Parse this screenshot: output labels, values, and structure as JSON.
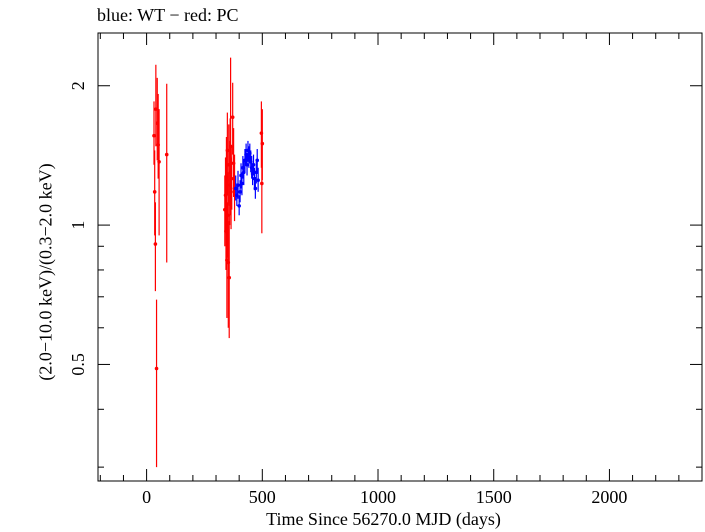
{
  "chart_data": {
    "type": "scatter",
    "title": "blue: WT − red: PC",
    "xlabel": "Time Since 56270.0 MJD (days)",
    "ylabel": "(2.0−10.0 keV)/(0.3−2.0 keV)",
    "xlim": [
      -210,
      2400
    ],
    "ylim": [
      0.28,
      2.6
    ],
    "yscale": "log",
    "x_ticks": [
      0,
      500,
      1000,
      1500,
      2000
    ],
    "y_ticks": [
      0.5,
      1,
      2
    ],
    "grid": false,
    "series": [
      {
        "name": "WT",
        "color": "#0000ff",
        "points": [
          {
            "x": 385,
            "y": 1.2,
            "lo": 1.13,
            "hi": 1.28
          },
          {
            "x": 390,
            "y": 1.16,
            "lo": 1.1,
            "hi": 1.23
          },
          {
            "x": 395,
            "y": 1.22,
            "lo": 1.14,
            "hi": 1.31
          },
          {
            "x": 400,
            "y": 1.1,
            "lo": 1.05,
            "hi": 1.16
          },
          {
            "x": 404,
            "y": 1.18,
            "lo": 1.12,
            "hi": 1.25
          },
          {
            "x": 408,
            "y": 1.28,
            "lo": 1.2,
            "hi": 1.36
          },
          {
            "x": 412,
            "y": 1.23,
            "lo": 1.16,
            "hi": 1.3
          },
          {
            "x": 416,
            "y": 1.33,
            "lo": 1.26,
            "hi": 1.41
          },
          {
            "x": 420,
            "y": 1.3,
            "lo": 1.22,
            "hi": 1.38
          },
          {
            "x": 425,
            "y": 1.38,
            "lo": 1.3,
            "hi": 1.46
          },
          {
            "x": 430,
            "y": 1.42,
            "lo": 1.35,
            "hi": 1.5
          },
          {
            "x": 434,
            "y": 1.35,
            "lo": 1.28,
            "hi": 1.43
          },
          {
            "x": 438,
            "y": 1.45,
            "lo": 1.37,
            "hi": 1.52
          },
          {
            "x": 442,
            "y": 1.4,
            "lo": 1.33,
            "hi": 1.48
          },
          {
            "x": 446,
            "y": 1.43,
            "lo": 1.36,
            "hi": 1.5
          },
          {
            "x": 450,
            "y": 1.37,
            "lo": 1.3,
            "hi": 1.45
          },
          {
            "x": 454,
            "y": 1.33,
            "lo": 1.26,
            "hi": 1.41
          },
          {
            "x": 458,
            "y": 1.29,
            "lo": 1.22,
            "hi": 1.36
          },
          {
            "x": 462,
            "y": 1.35,
            "lo": 1.28,
            "hi": 1.42
          },
          {
            "x": 466,
            "y": 1.26,
            "lo": 1.19,
            "hi": 1.33
          },
          {
            "x": 470,
            "y": 1.2,
            "lo": 1.14,
            "hi": 1.27
          },
          {
            "x": 474,
            "y": 1.3,
            "lo": 1.23,
            "hi": 1.37
          },
          {
            "x": 478,
            "y": 1.38,
            "lo": 1.3,
            "hi": 1.46
          },
          {
            "x": 482,
            "y": 1.25,
            "lo": 1.18,
            "hi": 1.33
          }
        ]
      },
      {
        "name": "PC",
        "color": "#ff0000",
        "points": [
          {
            "x": 32,
            "y": 1.56,
            "lo": 1.35,
            "hi": 1.85
          },
          {
            "x": 35,
            "y": 1.18,
            "lo": 0.95,
            "hi": 1.45
          },
          {
            "x": 38,
            "y": 0.91,
            "lo": 0.72,
            "hi": 1.12
          },
          {
            "x": 40,
            "y": 1.78,
            "lo": 1.48,
            "hi": 2.22
          },
          {
            "x": 43,
            "y": 0.49,
            "lo": 0.3,
            "hi": 0.69
          },
          {
            "x": 46,
            "y": 1.66,
            "lo": 1.38,
            "hi": 2.08
          },
          {
            "x": 50,
            "y": 1.49,
            "lo": 1.26,
            "hi": 1.92
          },
          {
            "x": 54,
            "y": 1.37,
            "lo": 0.95,
            "hi": 1.78
          },
          {
            "x": 87,
            "y": 1.42,
            "lo": 0.83,
            "hi": 2.02
          },
          {
            "x": 338,
            "y": 1.08,
            "lo": 0.9,
            "hi": 1.28
          },
          {
            "x": 341,
            "y": 1.16,
            "lo": 0.96,
            "hi": 1.4
          },
          {
            "x": 343,
            "y": 0.97,
            "lo": 0.8,
            "hi": 1.18
          },
          {
            "x": 345,
            "y": 1.25,
            "lo": 1.02,
            "hi": 1.55
          },
          {
            "x": 347,
            "y": 0.84,
            "lo": 0.63,
            "hi": 1.12
          },
          {
            "x": 349,
            "y": 1.45,
            "lo": 1.16,
            "hi": 1.75
          },
          {
            "x": 351,
            "y": 1.05,
            "lo": 0.85,
            "hi": 1.3
          },
          {
            "x": 353,
            "y": 0.83,
            "lo": 0.6,
            "hi": 1.1
          },
          {
            "x": 355,
            "y": 1.35,
            "lo": 1.1,
            "hi": 1.65
          },
          {
            "x": 357,
            "y": 0.77,
            "lo": 0.57,
            "hi": 1.02
          },
          {
            "x": 359,
            "y": 1.22,
            "lo": 1.0,
            "hi": 1.52
          },
          {
            "x": 361,
            "y": 1.3,
            "lo": 1.05,
            "hi": 1.7
          },
          {
            "x": 363,
            "y": 1.48,
            "lo": 1.2,
            "hi": 2.3
          },
          {
            "x": 365,
            "y": 1.18,
            "lo": 0.98,
            "hi": 1.4
          },
          {
            "x": 368,
            "y": 1.26,
            "lo": 1.08,
            "hi": 1.48
          },
          {
            "x": 372,
            "y": 1.71,
            "lo": 1.42,
            "hi": 2.03
          },
          {
            "x": 376,
            "y": 1.36,
            "lo": 1.15,
            "hi": 1.62
          },
          {
            "x": 380,
            "y": 1.2,
            "lo": 1.02,
            "hi": 1.42
          },
          {
            "x": 496,
            "y": 1.58,
            "lo": 1.33,
            "hi": 1.85
          },
          {
            "x": 498,
            "y": 1.23,
            "lo": 0.96,
            "hi": 1.55
          },
          {
            "x": 500,
            "y": 1.5,
            "lo": 1.25,
            "hi": 1.78
          }
        ]
      }
    ]
  }
}
